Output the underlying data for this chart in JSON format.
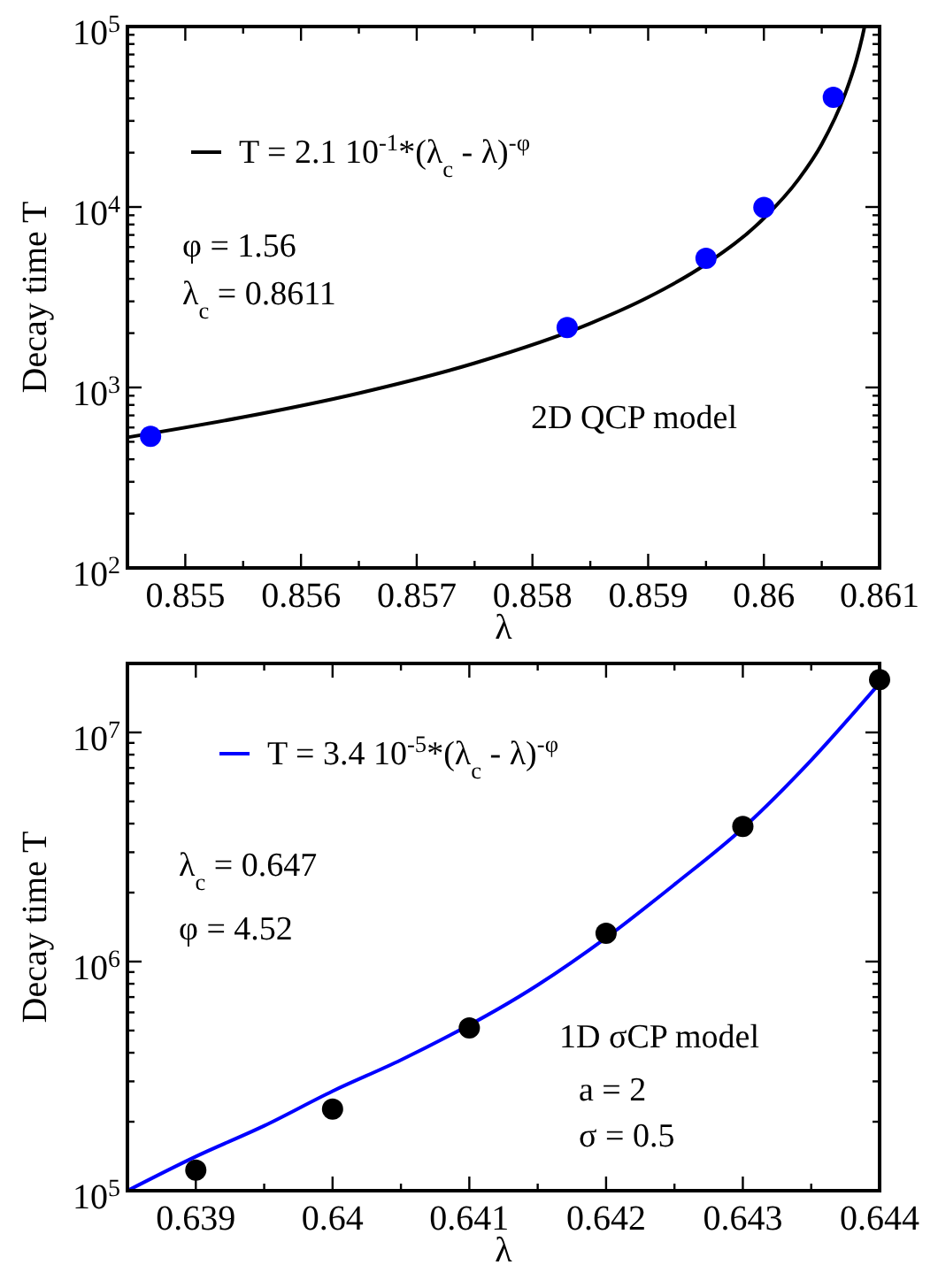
{
  "chart_data": [
    {
      "type": "scatter",
      "xlabel": "λ",
      "ylabel": "Decay time T",
      "log": "y",
      "legend": "top left",
      "xlim": [
        0.8545,
        0.861
      ],
      "ylim": [
        100,
        100000
      ],
      "xticks": [
        0.855,
        {
          "value": 0.8555,
          "label": null
        },
        0.856,
        {
          "value": 0.8565,
          "label": null
        },
        0.857,
        {
          "value": 0.8575,
          "label": null
        },
        0.858,
        {
          "value": 0.8585,
          "label": null
        },
        0.859,
        {
          "value": 0.8595,
          "label": null
        },
        0.86,
        {
          "value": 0.8605,
          "label": null
        },
        0.861
      ],
      "yticks": [
        {
          "value": 100,
          "label": "10$^{2}$"
        },
        {
          "value": 200,
          "label": null
        },
        {
          "value": 300,
          "label": null
        },
        {
          "value": 400,
          "label": null
        },
        {
          "value": 500,
          "label": null
        },
        {
          "value": 600,
          "label": null
        },
        {
          "value": 700,
          "label": null
        },
        {
          "value": 800,
          "label": null
        },
        {
          "value": 900,
          "label": null
        },
        {
          "value": 1000,
          "label": "10$^{3}$"
        },
        {
          "value": 2000,
          "label": null
        },
        {
          "value": 3000,
          "label": null
        },
        {
          "value": 4000,
          "label": null
        },
        {
          "value": 5000,
          "label": null
        },
        {
          "value": 6000,
          "label": null
        },
        {
          "value": 7000,
          "label": null
        },
        {
          "value": 8000,
          "label": null
        },
        {
          "value": 9000,
          "label": null
        },
        {
          "value": 10000,
          "label": "10$^{4}$"
        },
        {
          "value": 20000,
          "label": null
        },
        {
          "value": 30000,
          "label": null
        },
        {
          "value": 40000,
          "label": null
        },
        {
          "value": 50000,
          "label": null
        },
        {
          "value": 60000,
          "label": null
        },
        {
          "value": 70000,
          "label": null
        },
        {
          "value": 80000,
          "label": null
        },
        {
          "value": 90000,
          "label": null
        },
        {
          "value": 100000,
          "label": "10$^{5}$"
        }
      ],
      "annotations": [
        "φ = 1.56",
        "λ$_{c}$ = 0.8611",
        "2D QCP model"
      ],
      "series": [
        {
          "type": "line",
          "name": "T = 2.1 10$^{-1}$*(λ$_{c}$ - λ)$^{-φ}$",
          "color": "#000000",
          "line_style": "solid",
          "x": [
            0.8545,
            0.8555,
            0.8565,
            0.8575,
            0.8585,
            0.859,
            0.8595,
            0.86,
            0.8603,
            0.8605,
            0.8607,
            0.8608,
            0.86085,
            0.86087
          ],
          "values": [
            529,
            685,
            930,
            1364,
            2264,
            3160,
            4830,
            8660,
            14250,
            22300,
            42000,
            65400,
            87400,
            100000
          ]
        },
        {
          "type": "scatter",
          "color": "#0000ff",
          "marker": "circle",
          "x": [
            0.8547,
            0.8583,
            0.8595,
            0.86,
            0.8606
          ],
          "values": [
            536,
            2150,
            5200,
            9940,
            40500
          ]
        }
      ]
    },
    {
      "type": "scatter",
      "xlabel": "λ",
      "ylabel": "Decay time T",
      "log": "y",
      "legend": "top left",
      "xlim": [
        0.6385,
        0.644
      ],
      "ylim": [
        100000,
        20000000
      ],
      "xticks": [
        0.639,
        {
          "value": 0.6395,
          "label": null
        },
        0.64,
        {
          "value": 0.6405,
          "label": null
        },
        0.641,
        {
          "value": 0.6415,
          "label": null
        },
        0.642,
        {
          "value": 0.6425,
          "label": null
        },
        0.643,
        {
          "value": 0.6435,
          "label": null
        },
        0.644
      ],
      "yticks": [
        {
          "value": 100000,
          "label": "10$^{5}$"
        },
        {
          "value": 200000,
          "label": null
        },
        {
          "value": 300000,
          "label": null
        },
        {
          "value": 400000,
          "label": null
        },
        {
          "value": 500000,
          "label": null
        },
        {
          "value": 600000,
          "label": null
        },
        {
          "value": 700000,
          "label": null
        },
        {
          "value": 800000,
          "label": null
        },
        {
          "value": 900000,
          "label": null
        },
        {
          "value": 1000000,
          "label": "10$^{6}$"
        },
        {
          "value": 2000000,
          "label": null
        },
        {
          "value": 3000000,
          "label": null
        },
        {
          "value": 4000000,
          "label": null
        },
        {
          "value": 5000000,
          "label": null
        },
        {
          "value": 6000000,
          "label": null
        },
        {
          "value": 7000000,
          "label": null
        },
        {
          "value": 8000000,
          "label": null
        },
        {
          "value": 9000000,
          "label": null
        },
        {
          "value": 10000000,
          "label": "10$^{7}$"
        }
      ],
      "annotations": [
        "λ$_{c}$ = 0.647",
        "φ = 4.52",
        "1D σCP model",
        "a = 2",
        "σ = 0.5"
      ],
      "series": [
        {
          "type": "line",
          "name": "T = 3.4 10$^{-5}$*(λ$_{c}$ - λ)$^{-φ}$",
          "color": "#0000ff",
          "line_style": "solid",
          "x": [
            0.6385,
            0.639,
            0.6395,
            0.64,
            0.6405,
            0.6415,
            0.642,
            0.6425,
            0.643,
            0.6435,
            0.644
          ],
          "values": [
            100000,
            141000,
            192000,
            272000,
            372000,
            790000,
            1270000,
            2170000,
            3820000,
            7570000,
            16400000
          ]
        },
        {
          "type": "scatter",
          "color": "#000000",
          "marker": "circle",
          "x": [
            0.639,
            0.64,
            0.641,
            0.642,
            0.643,
            0.644
          ],
          "values": [
            123000,
            227000,
            513000,
            1330000,
            3890000,
            17000000
          ]
        }
      ]
    }
  ]
}
